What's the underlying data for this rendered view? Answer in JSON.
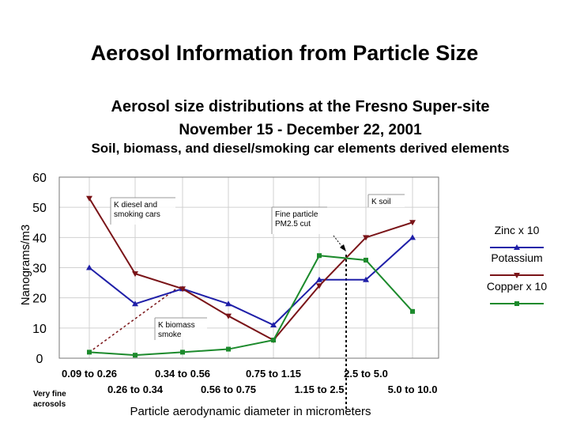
{
  "slide": {
    "title": "Aerosol Information from Particle Size"
  },
  "chart_data": {
    "type": "line",
    "title": "Aerosol size distributions at the Fresno Super-site",
    "subtitle": "November 15 - December 22, 2001",
    "subtitle2": "Soil, biomass, and diesel/smoking car elements derived elements",
    "ylabel": "Nanograms/m3",
    "xlabel": "Particle aerodynamic diameter in micrometers",
    "ylim": [
      0,
      60
    ],
    "yticks": [
      0,
      10,
      20,
      30,
      40,
      50,
      60
    ],
    "grid": true,
    "legend_position": "right",
    "categories": [
      "0.09 to 0.26",
      "0.26 to 0.34",
      "0.34 to 0.56",
      "0.56 to 0.75",
      "0.75 to 1.15",
      "1.15 to 2.5",
      "2.5 to 5.0",
      "5.0 to 10.0"
    ],
    "x_footnote": [
      "Very fine",
      "acrosols"
    ],
    "series": [
      {
        "name": "Zinc x 10",
        "color": "#1f1fa8",
        "marker": "triangle",
        "values": [
          30,
          18,
          23,
          18,
          11,
          26,
          26,
          40
        ]
      },
      {
        "name": "Potassium",
        "color": "#7a1418",
        "marker": "triangle-down",
        "values": [
          53,
          28,
          23,
          14,
          6,
          24,
          40,
          45
        ]
      },
      {
        "name": "Copper x 10",
        "color": "#1c8a2c",
        "marker": "square",
        "values": [
          2,
          1,
          2,
          3,
          6,
          34,
          32.5,
          15.5
        ]
      }
    ],
    "annotations": [
      {
        "lines": [
          "K diesel and",
          "smoking cars"
        ]
      },
      {
        "lines": [
          "K soil"
        ]
      },
      {
        "lines": [
          "Fine particle",
          "PM2.5 cut"
        ]
      },
      {
        "lines": [
          "K biomass",
          "smoke"
        ]
      }
    ]
  }
}
